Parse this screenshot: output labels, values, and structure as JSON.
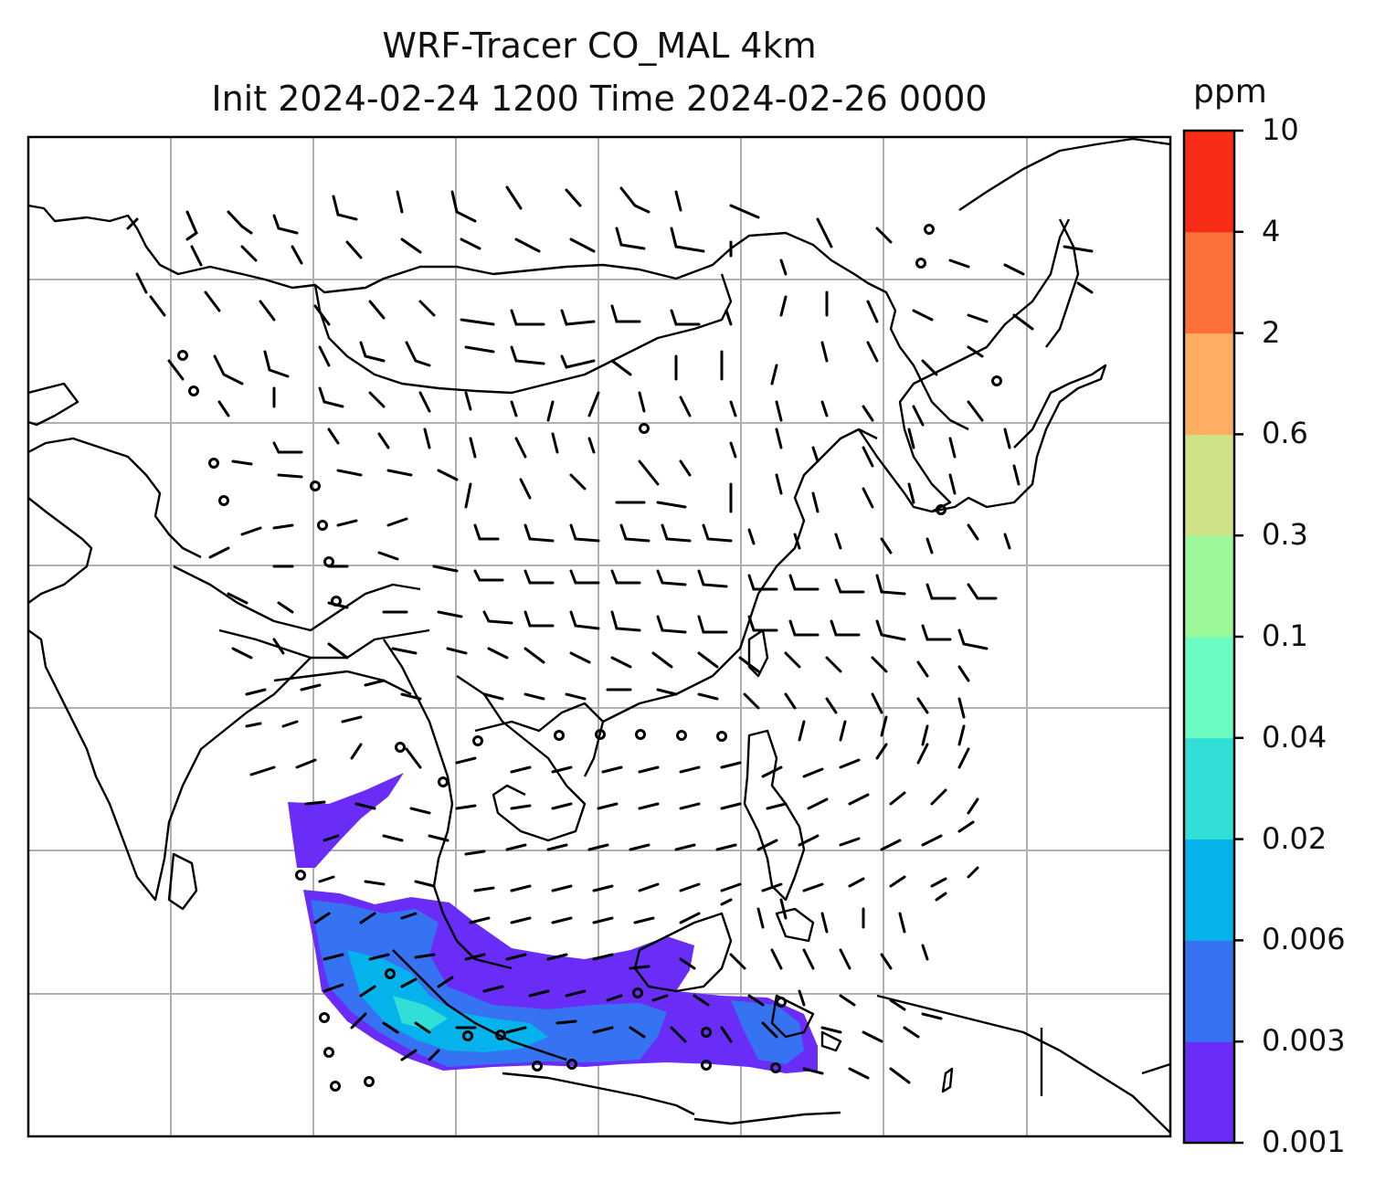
{
  "title": {
    "line1": "WRF-Tracer CO_MAL 4km",
    "line2": "Init 2024-02-24 1200 Time 2024-02-26 0000"
  },
  "colorbar": {
    "unit": "ppm",
    "levels": [
      "0.001",
      "0.003",
      "0.006",
      "0.02",
      "0.04",
      "0.1",
      "0.3",
      "0.6",
      "2",
      "4",
      "10"
    ],
    "colors": [
      "#6a2cf7",
      "#3573f2",
      "#04b3ec",
      "#31dfd6",
      "#6cfcc2",
      "#9cf99b",
      "#d0e288",
      "#fdae63",
      "#fd7138",
      "#f92d17"
    ]
  },
  "map": {
    "gridlines": true,
    "field": "CO_MAL tracer concentration with wind barbs",
    "plume_levels_present": [
      "0.001",
      "0.003",
      "0.006",
      "0.02"
    ]
  }
}
